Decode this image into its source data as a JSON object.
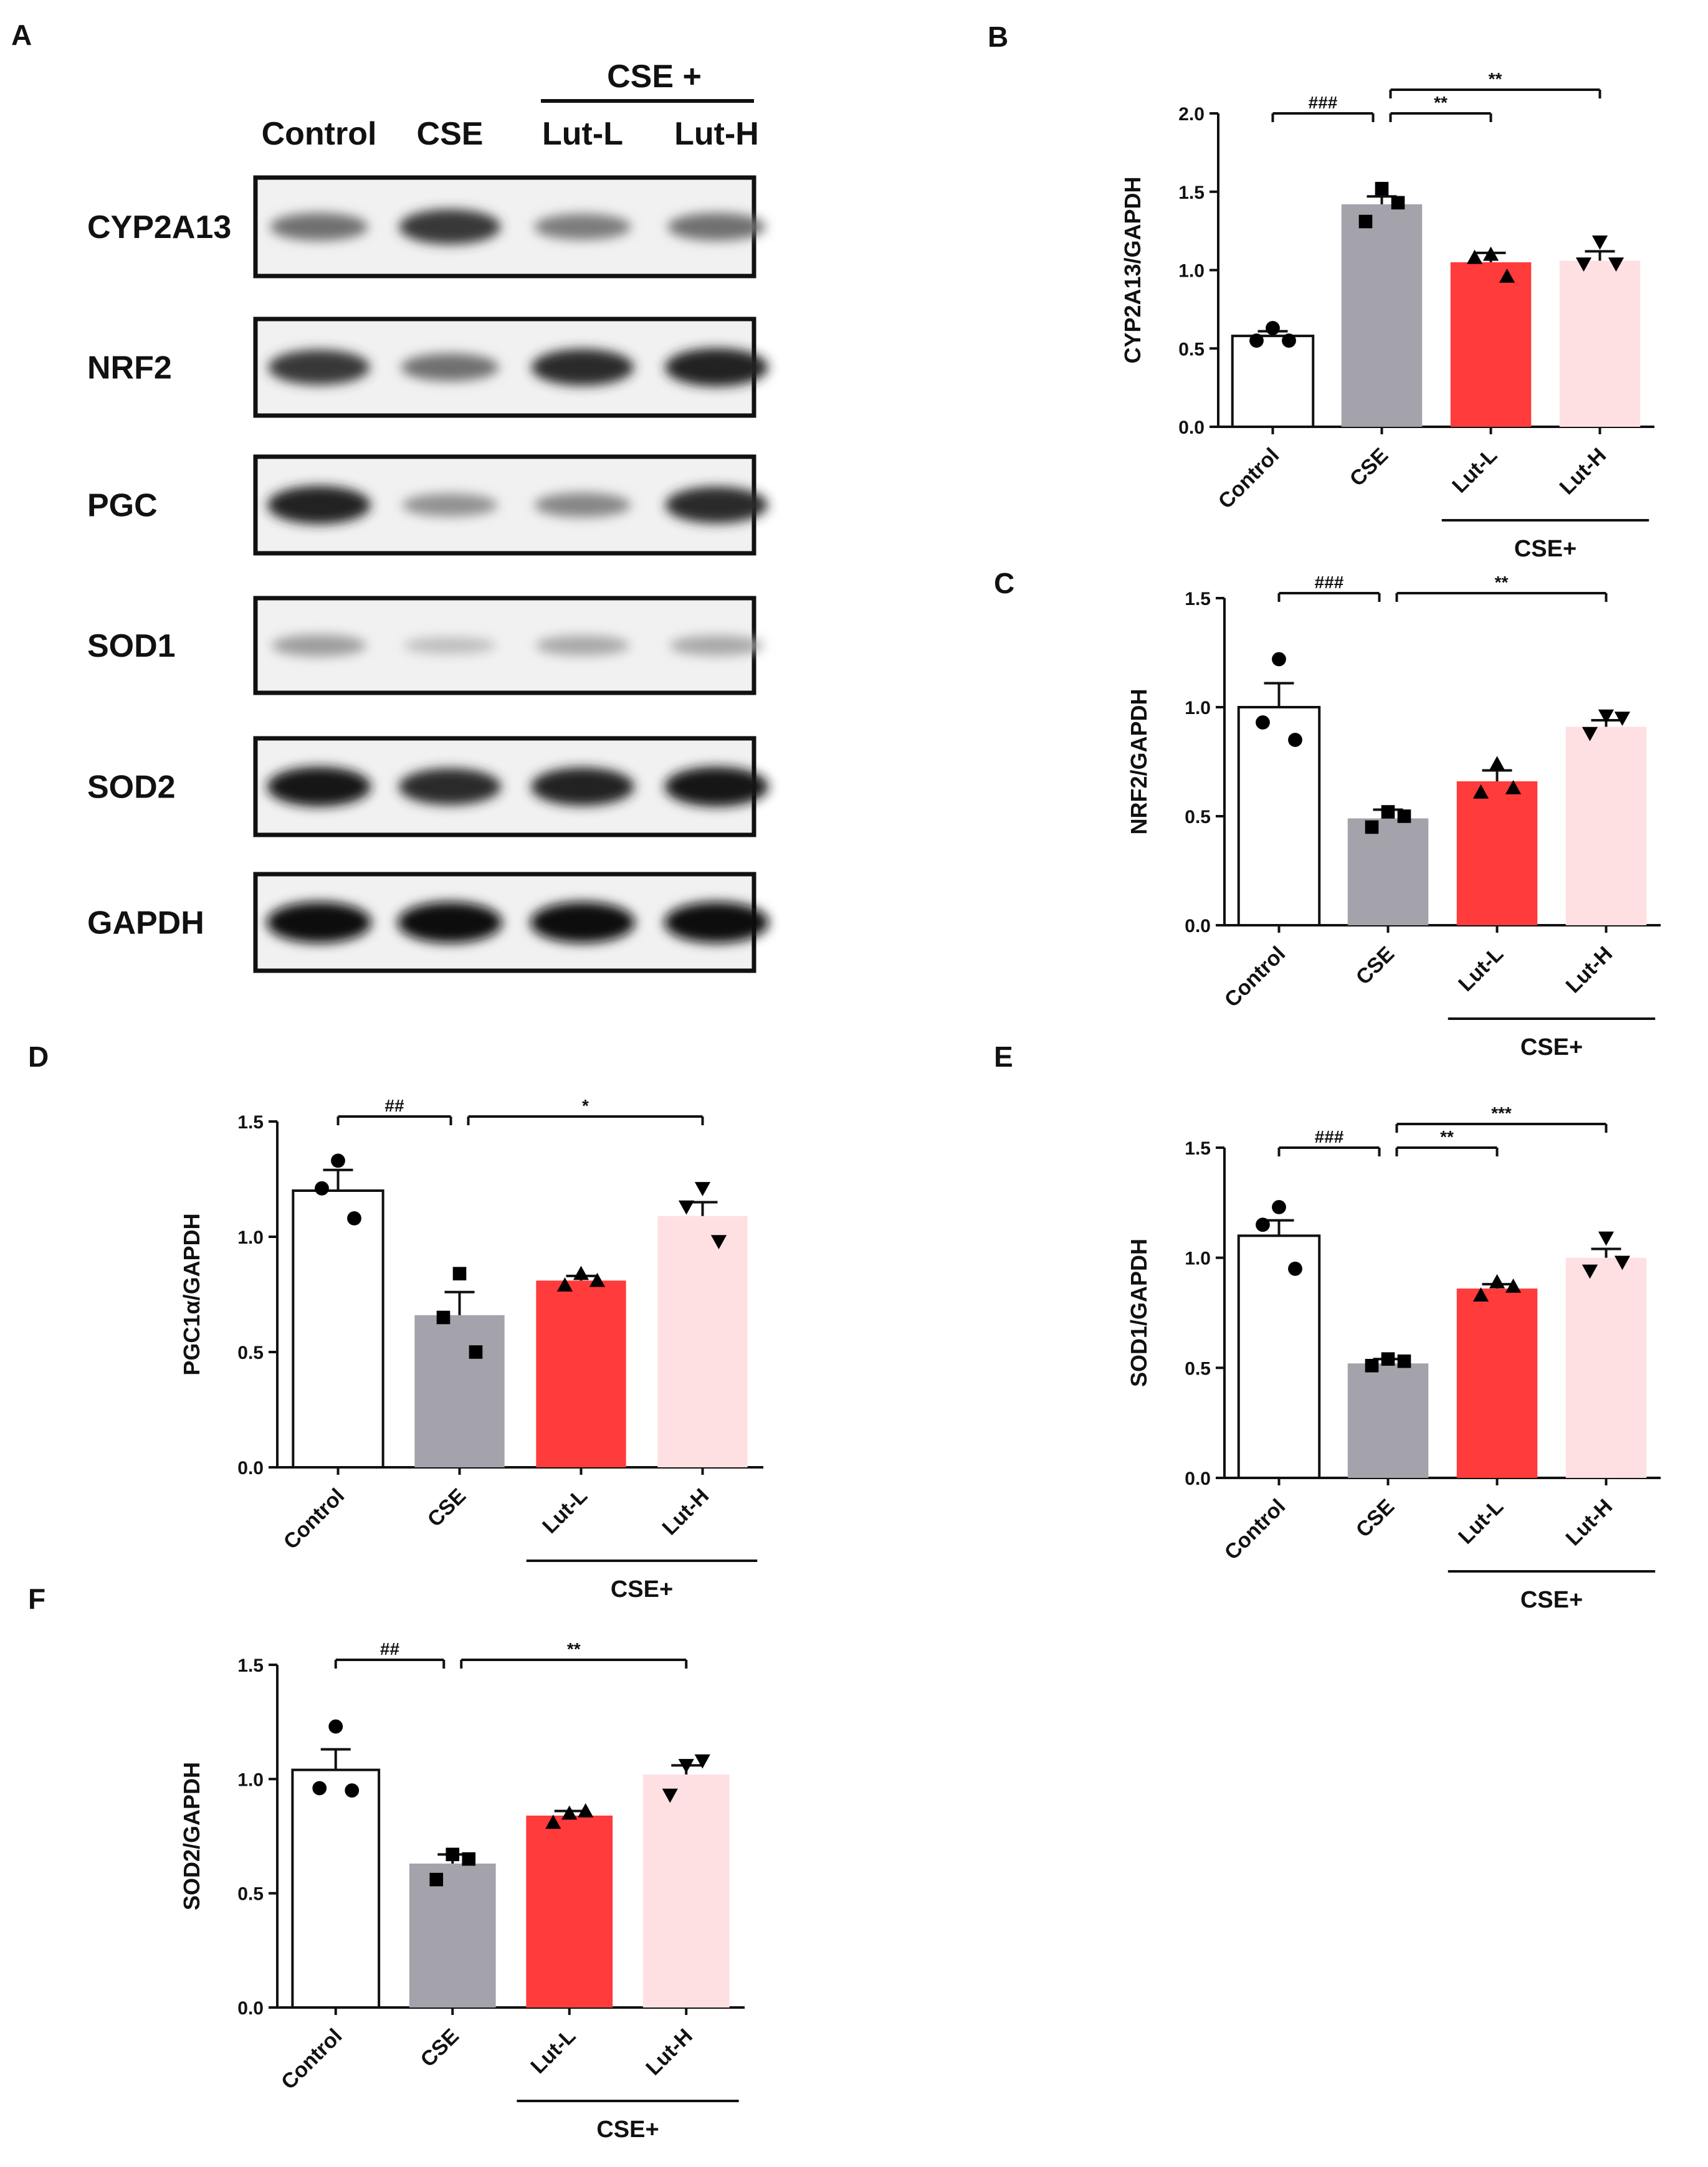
{
  "western_blot": {
    "panel_label": "A",
    "group_label": "CSE +",
    "lanes": [
      "Control",
      "CSE",
      "Lut-L",
      "Lut-H"
    ],
    "rows": [
      {
        "label": "CYP2A13",
        "intensity": [
          0.55,
          0.8,
          0.5,
          0.55
        ]
      },
      {
        "label": "NRF2",
        "intensity": [
          0.8,
          0.55,
          0.85,
          0.9
        ]
      },
      {
        "label": "PGC",
        "intensity": [
          0.9,
          0.4,
          0.45,
          0.85
        ]
      },
      {
        "label": "SOD1",
        "intensity": [
          0.35,
          0.2,
          0.3,
          0.3
        ]
      },
      {
        "label": "SOD2",
        "intensity": [
          0.95,
          0.85,
          0.9,
          0.95
        ]
      },
      {
        "label": "GAPDH",
        "intensity": [
          1.0,
          1.0,
          1.0,
          1.0
        ]
      }
    ]
  },
  "chart_data": [
    {
      "panel": "B",
      "type": "bar",
      "categories": [
        "Control",
        "CSE",
        "Lut-L",
        "Lut-H"
      ],
      "group_label": "CSE+",
      "ylabel": "CYP2A13/GAPDH",
      "ylim": [
        0,
        2.0
      ],
      "yticks": [
        0.0,
        0.5,
        1.0,
        1.5,
        2.0
      ],
      "tick_labels": [
        "0.0",
        "0.5",
        "1.0",
        "1.5",
        "2.0"
      ],
      "values": [
        0.58,
        1.42,
        1.05,
        1.06
      ],
      "sem": [
        0.03,
        0.05,
        0.06,
        0.06
      ],
      "points": [
        [
          0.63,
          0.55,
          0.55
        ],
        [
          1.52,
          1.31,
          1.43
        ],
        [
          1.1,
          1.08,
          0.96
        ],
        [
          1.18,
          1.04,
          1.04
        ]
      ],
      "markers": [
        "circle",
        "square",
        "triangle",
        "triangle-down"
      ],
      "colors": [
        "#ffffff",
        "#a4a3ab",
        "#ff3b3b",
        "#ffe0e2"
      ],
      "comparisons": [
        {
          "from": 0,
          "to": 1,
          "label": "###",
          "level": 1
        },
        {
          "from": 1,
          "to": 2,
          "label": "**",
          "level": 1
        },
        {
          "from": 1,
          "to": 3,
          "label": "**",
          "level": 2
        }
      ]
    },
    {
      "panel": "C",
      "type": "bar",
      "categories": [
        "Control",
        "CSE",
        "Lut-L",
        "Lut-H"
      ],
      "group_label": "CSE+",
      "ylabel": "NRF2/GAPDH",
      "ylim": [
        0,
        1.5
      ],
      "yticks": [
        0.0,
        0.5,
        1.0,
        1.5
      ],
      "tick_labels": [
        "0.0",
        "0.5",
        "1.0",
        "1.5"
      ],
      "values": [
        1.0,
        0.49,
        0.66,
        0.91
      ],
      "sem": [
        0.11,
        0.04,
        0.05,
        0.03
      ],
      "points": [
        [
          1.22,
          0.93,
          0.85
        ],
        [
          0.52,
          0.45,
          0.5
        ],
        [
          0.74,
          0.61,
          0.63
        ],
        [
          0.96,
          0.88,
          0.95
        ]
      ],
      "markers": [
        "circle",
        "square",
        "triangle",
        "triangle-down"
      ],
      "colors": [
        "#ffffff",
        "#a4a3ab",
        "#ff3b3b",
        "#ffe0e2"
      ],
      "comparisons": [
        {
          "from": 0,
          "to": 1,
          "label": "###",
          "level": 1
        },
        {
          "from": 1,
          "to": 3,
          "label": "**",
          "level": 1
        }
      ]
    },
    {
      "panel": "D",
      "type": "bar",
      "categories": [
        "Control",
        "CSE",
        "Lut-L",
        "Lut-H"
      ],
      "group_label": "CSE+",
      "ylabel": "PGC1α/GAPDH",
      "ylim": [
        0,
        1.5
      ],
      "yticks": [
        0.0,
        0.5,
        1.0,
        1.5
      ],
      "tick_labels": [
        "0.0",
        "0.5",
        "1.0",
        "1.5"
      ],
      "values": [
        1.2,
        0.66,
        0.81,
        1.09
      ],
      "sem": [
        0.09,
        0.1,
        0.02,
        0.06
      ],
      "points": [
        [
          1.33,
          1.21,
          1.08
        ],
        [
          0.84,
          0.65,
          0.5
        ],
        [
          0.84,
          0.79,
          0.81
        ],
        [
          1.21,
          1.13,
          0.98
        ]
      ],
      "markers": [
        "circle",
        "square",
        "triangle",
        "triangle-down"
      ],
      "colors": [
        "#ffffff",
        "#a4a3ab",
        "#ff3b3b",
        "#ffe0e2"
      ],
      "comparisons": [
        {
          "from": 0,
          "to": 1,
          "label": "##",
          "level": 1
        },
        {
          "from": 1,
          "to": 3,
          "label": "*",
          "level": 1
        }
      ]
    },
    {
      "panel": "E",
      "type": "bar",
      "categories": [
        "Control",
        "CSE",
        "Lut-L",
        "Lut-H"
      ],
      "group_label": "CSE+",
      "ylabel": "SOD1/GAPDH",
      "ylim": [
        0,
        1.5
      ],
      "yticks": [
        0.0,
        0.5,
        1.0,
        1.5
      ],
      "tick_labels": [
        "0.0",
        "0.5",
        "1.0",
        "1.5"
      ],
      "values": [
        1.1,
        0.52,
        0.86,
        1.0
      ],
      "sem": [
        0.07,
        0.02,
        0.02,
        0.04
      ],
      "points": [
        [
          1.23,
          1.15,
          0.95
        ],
        [
          0.54,
          0.51,
          0.53
        ],
        [
          0.89,
          0.83,
          0.87
        ],
        [
          1.09,
          0.94,
          0.98
        ]
      ],
      "markers": [
        "circle",
        "square",
        "triangle",
        "triangle-down"
      ],
      "colors": [
        "#ffffff",
        "#a4a3ab",
        "#ff3b3b",
        "#ffe0e2"
      ],
      "comparisons": [
        {
          "from": 0,
          "to": 1,
          "label": "###",
          "level": 1
        },
        {
          "from": 1,
          "to": 2,
          "label": "**",
          "level": 1
        },
        {
          "from": 1,
          "to": 3,
          "label": "***",
          "level": 2
        }
      ]
    },
    {
      "panel": "F",
      "type": "bar",
      "categories": [
        "Control",
        "CSE",
        "Lut-L",
        "Lut-H"
      ],
      "group_label": "CSE+",
      "ylabel": "SOD2/GAPDH",
      "ylim": [
        0,
        1.5
      ],
      "yticks": [
        0.0,
        0.5,
        1.0,
        1.5
      ],
      "tick_labels": [
        "0.0",
        "0.5",
        "1.0",
        "1.5"
      ],
      "values": [
        1.04,
        0.63,
        0.84,
        1.02
      ],
      "sem": [
        0.09,
        0.04,
        0.02,
        0.04
      ],
      "points": [
        [
          1.23,
          0.96,
          0.95
        ],
        [
          0.67,
          0.56,
          0.65
        ],
        [
          0.85,
          0.81,
          0.86
        ],
        [
          1.06,
          0.93,
          1.08
        ]
      ],
      "markers": [
        "circle",
        "square",
        "triangle",
        "triangle-down"
      ],
      "colors": [
        "#ffffff",
        "#a4a3ab",
        "#ff3b3b",
        "#ffe0e2"
      ],
      "comparisons": [
        {
          "from": 0,
          "to": 1,
          "label": "##",
          "level": 1
        },
        {
          "from": 1,
          "to": 3,
          "label": "**",
          "level": 1
        }
      ]
    }
  ]
}
